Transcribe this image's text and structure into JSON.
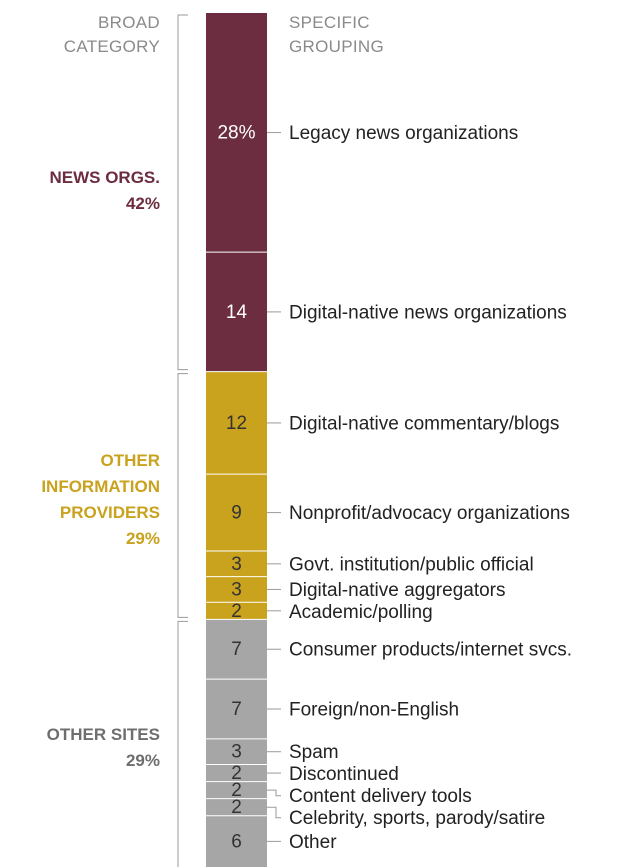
{
  "headers": {
    "broad": "BROAD\nCATEGORY",
    "specific": "SPECIFIC\nGROUPING"
  },
  "colors": {
    "news": "#6b2d3f",
    "info": "#c9a21e",
    "other": "#a6a6a6",
    "bar_text_light": "#ffffff",
    "bar_text_dark": "#333333",
    "label_text": "#222222",
    "bracket": "#9a9a9a",
    "header_text": "#8a8a8a"
  },
  "chart_data": {
    "type": "bar",
    "orientation": "stacked-vertical",
    "unit": "%",
    "total": 100,
    "categories": [
      {
        "name": "NEWS ORGS.",
        "pct_label": "42%",
        "value": 42,
        "color_key": "news"
      },
      {
        "name": "OTHER\nINFORMATION\nPROVIDERS",
        "pct_label": "29%",
        "value": 29,
        "color_key": "info"
      },
      {
        "name": "OTHER SITES",
        "pct_label": "29%",
        "value": 29,
        "color_key": "other"
      }
    ],
    "segments": [
      {
        "label": "Legacy news organizations",
        "value": 28,
        "value_label": "28%",
        "category": 0
      },
      {
        "label": "Digital-native news organizations",
        "value": 14,
        "value_label": "14",
        "category": 0
      },
      {
        "label": "Digital-native commentary/blogs",
        "value": 12,
        "value_label": "12",
        "category": 1
      },
      {
        "label": "Nonprofit/advocacy organizations",
        "value": 9,
        "value_label": "9",
        "category": 1
      },
      {
        "label": "Govt. institution/public official",
        "value": 3,
        "value_label": "3",
        "category": 1
      },
      {
        "label": "Digital-native aggregators",
        "value": 3,
        "value_label": "3",
        "category": 1
      },
      {
        "label": "Academic/polling",
        "value": 2,
        "value_label": "2",
        "category": 1
      },
      {
        "label": "Consumer products/internet svcs.",
        "value": 7,
        "value_label": "7",
        "category": 2
      },
      {
        "label": "Foreign/non-English",
        "value": 7,
        "value_label": "7",
        "category": 2
      },
      {
        "label": "Spam",
        "value": 3,
        "value_label": "3",
        "category": 2
      },
      {
        "label": "Discontinued",
        "value": 2,
        "value_label": "2",
        "category": 2
      },
      {
        "label": "Content delivery tools",
        "value": 2,
        "value_label": "2",
        "category": 2
      },
      {
        "label": "Celebrity, sports, parody/satire",
        "value": 2,
        "value_label": "2",
        "category": 2
      },
      {
        "label": "Other",
        "value": 6,
        "value_label": "6",
        "category": 2
      }
    ]
  }
}
